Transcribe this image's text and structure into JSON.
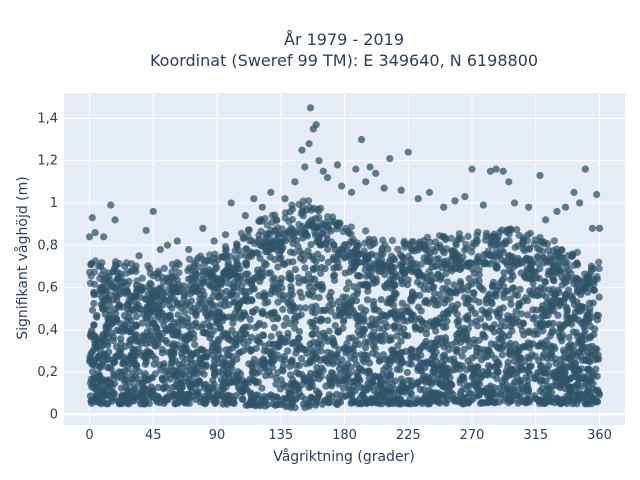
{
  "chart_data": {
    "type": "scatter",
    "title_lines": [
      "År 1979 - 2019",
      "Koordinat (Sweref 99 TM): E 349640, N 6198800"
    ],
    "xlabel": "Vågriktning (grader)",
    "ylabel": "Signifikant våghöjd (m)",
    "xlim": [
      -18,
      378
    ],
    "ylim": [
      -0.05,
      1.52
    ],
    "xticks": [
      0,
      45,
      90,
      135,
      180,
      225,
      270,
      315,
      360
    ],
    "xtick_labels": [
      "0",
      "45",
      "90",
      "135",
      "180",
      "225",
      "270",
      "315",
      "360"
    ],
    "yticks": [
      0,
      0.2,
      0.4,
      0.6,
      0.8,
      1.0,
      1.2,
      1.4
    ],
    "ytick_labels": [
      "0",
      "0,2",
      "0,4",
      "0,6",
      "0,8",
      "1",
      "1,2",
      "1,4"
    ],
    "grid": true,
    "marker_color": "#2f5469",
    "plot_bgcolor": "#e5ecf6",
    "dense_band": {
      "description_points": [
        [
          0,
          0.05,
          0.62
        ],
        [
          30,
          0.05,
          0.6
        ],
        [
          60,
          0.05,
          0.6
        ],
        [
          90,
          0.05,
          0.65
        ],
        [
          120,
          0.04,
          0.8
        ],
        [
          150,
          0.03,
          0.9
        ],
        [
          165,
          0.04,
          0.88
        ],
        [
          180,
          0.05,
          0.78
        ],
        [
          210,
          0.05,
          0.72
        ],
        [
          240,
          0.05,
          0.72
        ],
        [
          270,
          0.05,
          0.75
        ],
        [
          300,
          0.05,
          0.76
        ],
        [
          330,
          0.05,
          0.7
        ],
        [
          360,
          0.05,
          0.6
        ]
      ]
    },
    "outliers": [
      [
        0,
        0.84
      ],
      [
        2,
        0.93
      ],
      [
        4,
        0.86
      ],
      [
        10,
        0.84
      ],
      [
        15,
        0.99
      ],
      [
        18,
        0.92
      ],
      [
        25,
        0.7
      ],
      [
        30,
        0.68
      ],
      [
        35,
        0.75
      ],
      [
        40,
        0.87
      ],
      [
        45,
        0.96
      ],
      [
        50,
        0.78
      ],
      [
        55,
        0.8
      ],
      [
        62,
        0.82
      ],
      [
        70,
        0.78
      ],
      [
        80,
        0.88
      ],
      [
        88,
        0.82
      ],
      [
        96,
        0.85
      ],
      [
        100,
        1.0
      ],
      [
        110,
        0.94
      ],
      [
        116,
        1.02
      ],
      [
        122,
        0.98
      ],
      [
        128,
        1.05
      ],
      [
        138,
        1.02
      ],
      [
        145,
        1.1
      ],
      [
        150,
        1.25
      ],
      [
        152,
        1.17
      ],
      [
        155,
        1.28
      ],
      [
        156,
        1.45
      ],
      [
        158,
        1.35
      ],
      [
        160,
        1.37
      ],
      [
        162,
        1.2
      ],
      [
        165,
        1.15
      ],
      [
        168,
        1.12
      ],
      [
        175,
        1.18
      ],
      [
        178,
        1.08
      ],
      [
        185,
        1.05
      ],
      [
        188,
        1.16
      ],
      [
        192,
        1.3
      ],
      [
        195,
        1.1
      ],
      [
        198,
        1.17
      ],
      [
        202,
        1.14
      ],
      [
        208,
        1.07
      ],
      [
        212,
        1.21
      ],
      [
        220,
        1.06
      ],
      [
        225,
        1.24
      ],
      [
        232,
        1.02
      ],
      [
        240,
        1.05
      ],
      [
        250,
        0.98
      ],
      [
        258,
        1.01
      ],
      [
        265,
        1.03
      ],
      [
        270,
        1.16
      ],
      [
        278,
        0.99
      ],
      [
        283,
        1.15
      ],
      [
        287,
        1.16
      ],
      [
        292,
        1.15
      ],
      [
        296,
        1.1
      ],
      [
        300,
        1.0
      ],
      [
        310,
        0.98
      ],
      [
        318,
        1.13
      ],
      [
        322,
        0.92
      ],
      [
        330,
        0.96
      ],
      [
        336,
        0.98
      ],
      [
        342,
        1.05
      ],
      [
        346,
        1.0
      ],
      [
        350,
        1.16
      ],
      [
        355,
        0.88
      ],
      [
        358,
        1.04
      ],
      [
        360,
        0.88
      ]
    ]
  }
}
